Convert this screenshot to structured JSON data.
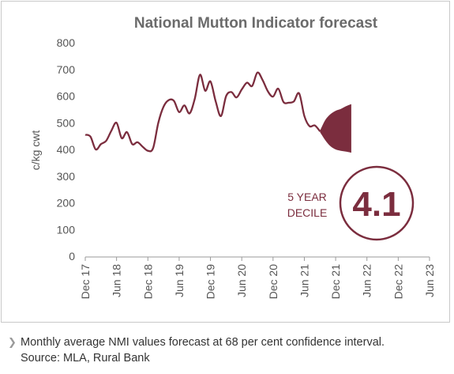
{
  "chart_data": {
    "type": "line",
    "title": "National Mutton Indicator forecast",
    "ylabel": "c/kg cwt",
    "xlabel": "",
    "ylim": [
      0,
      800
    ],
    "yticks": [
      0,
      100,
      200,
      300,
      400,
      500,
      600,
      700,
      800
    ],
    "x_tick_labels": [
      "Dec 17",
      "Jun 18",
      "Dec 18",
      "Jun 19",
      "Dec 19",
      "Jun 20",
      "Dec 20",
      "Jun 21",
      "Dec 21",
      "Jun 22",
      "Dec 22",
      "Jun 23"
    ],
    "x_start": "2017-12",
    "grid": false,
    "series": [
      {
        "values": [
          {
            "x": "2017-12",
            "y": 455
          },
          {
            "x": "2018-01",
            "y": 448
          },
          {
            "x": "2018-02",
            "y": 400
          },
          {
            "x": "2018-03",
            "y": 420
          },
          {
            "x": "2018-04",
            "y": 432
          },
          {
            "x": "2018-05",
            "y": 470
          },
          {
            "x": "2018-06",
            "y": 500
          },
          {
            "x": "2018-07",
            "y": 442
          },
          {
            "x": "2018-08",
            "y": 465
          },
          {
            "x": "2018-09",
            "y": 420
          },
          {
            "x": "2018-10",
            "y": 427
          },
          {
            "x": "2018-11",
            "y": 410
          },
          {
            "x": "2018-12",
            "y": 395
          },
          {
            "x": "2019-01",
            "y": 405
          },
          {
            "x": "2019-02",
            "y": 500
          },
          {
            "x": "2019-03",
            "y": 560
          },
          {
            "x": "2019-04",
            "y": 585
          },
          {
            "x": "2019-05",
            "y": 582
          },
          {
            "x": "2019-06",
            "y": 540
          },
          {
            "x": "2019-07",
            "y": 565
          },
          {
            "x": "2019-08",
            "y": 535
          },
          {
            "x": "2019-09",
            "y": 590
          },
          {
            "x": "2019-10",
            "y": 680
          },
          {
            "x": "2019-11",
            "y": 620
          },
          {
            "x": "2019-12",
            "y": 655
          },
          {
            "x": "2020-01",
            "y": 580
          },
          {
            "x": "2020-02",
            "y": 525
          },
          {
            "x": "2020-03",
            "y": 600
          },
          {
            "x": "2020-04",
            "y": 615
          },
          {
            "x": "2020-05",
            "y": 595
          },
          {
            "x": "2020-06",
            "y": 625
          },
          {
            "x": "2020-07",
            "y": 650
          },
          {
            "x": "2020-08",
            "y": 638
          },
          {
            "x": "2020-09",
            "y": 688
          },
          {
            "x": "2020-10",
            "y": 660
          },
          {
            "x": "2020-11",
            "y": 618
          },
          {
            "x": "2020-12",
            "y": 598
          },
          {
            "x": "2021-01",
            "y": 628
          },
          {
            "x": "2021-02",
            "y": 578
          },
          {
            "x": "2021-03",
            "y": 575
          },
          {
            "x": "2021-04",
            "y": 580
          },
          {
            "x": "2021-05",
            "y": 610
          },
          {
            "x": "2021-06",
            "y": 525
          },
          {
            "x": "2021-07",
            "y": 487
          },
          {
            "x": "2021-08",
            "y": 490
          },
          {
            "x": "2021-09",
            "y": 468
          }
        ]
      }
    ],
    "forecast_band": {
      "type": "area",
      "upper": [
        {
          "x": "2021-09",
          "y": 470
        },
        {
          "x": "2021-10",
          "y": 510
        },
        {
          "x": "2021-11",
          "y": 532
        },
        {
          "x": "2021-12",
          "y": 545
        },
        {
          "x": "2022-01",
          "y": 552
        },
        {
          "x": "2022-02",
          "y": 562
        },
        {
          "x": "2022-03",
          "y": 570
        }
      ],
      "lower": [
        {
          "x": "2021-09",
          "y": 465
        },
        {
          "x": "2021-10",
          "y": 435
        },
        {
          "x": "2021-11",
          "y": 412
        },
        {
          "x": "2021-12",
          "y": 400
        },
        {
          "x": "2022-01",
          "y": 395
        },
        {
          "x": "2022-02",
          "y": 392
        },
        {
          "x": "2022-03",
          "y": 388
        }
      ]
    }
  },
  "badge": {
    "label_line1": "5 YEAR",
    "label_line2": "DECILE",
    "value": "4.1"
  },
  "caption": {
    "line1": "Monthly average NMI values forecast at 68 per cent confidence interval.",
    "line2": "Source: MLA, Rural Bank"
  },
  "colors": {
    "series": "#7b2d3e",
    "band": "#7b2d3e",
    "title": "#6b6b6b",
    "axis_text": "#555555",
    "badge": "#7b2d3e"
  }
}
